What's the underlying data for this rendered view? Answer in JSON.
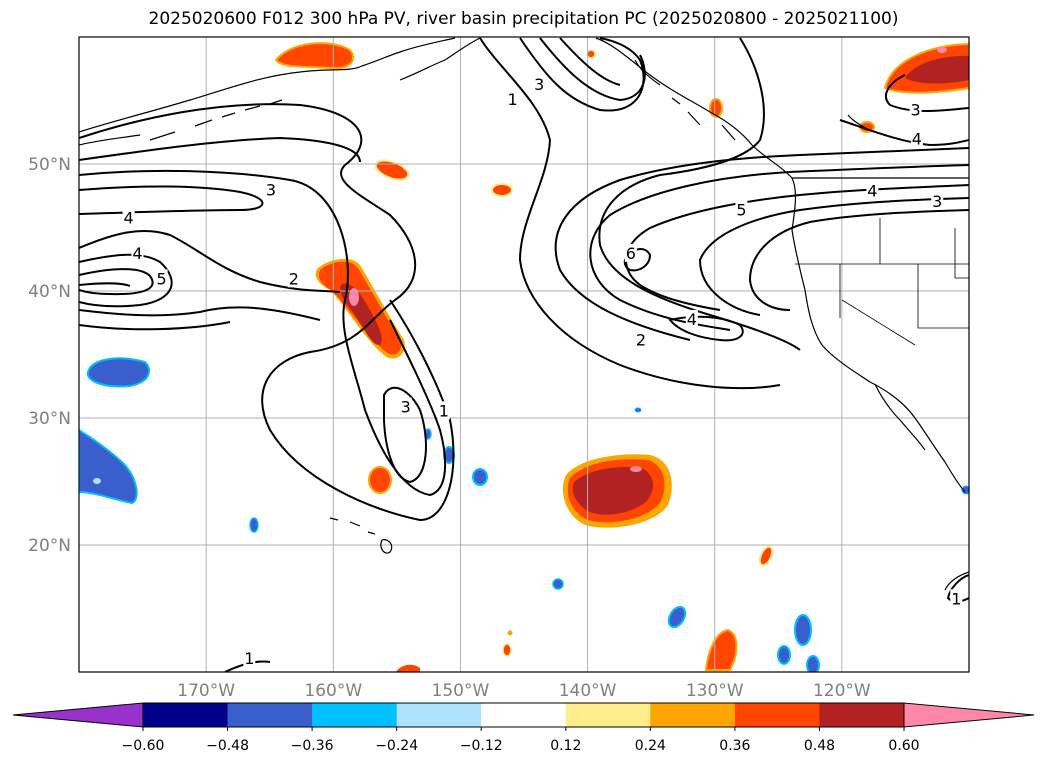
{
  "title": "2025020600 F012 300 hPa PV, river basin precipitation PC (2025020800 - 2025021100)",
  "axes": {
    "lat_labels": [
      {
        "lat": 50,
        "label": "50°N"
      },
      {
        "lat": 40,
        "label": "40°N"
      },
      {
        "lat": 30,
        "label": "30°N"
      },
      {
        "lat": 20,
        "label": "20°N"
      }
    ],
    "lon_labels": [
      {
        "lon": -170,
        "label": "170°W"
      },
      {
        "lon": -160,
        "label": "160°W"
      },
      {
        "lon": -150,
        "label": "150°W"
      },
      {
        "lon": -140,
        "label": "140°W"
      },
      {
        "lon": -130,
        "label": "130°W"
      },
      {
        "lon": -120,
        "label": "120°W"
      }
    ],
    "lon_range": [
      -180,
      -110
    ],
    "lat_range": [
      10,
      60
    ],
    "gridlines": true,
    "tick_color": "#808080"
  },
  "contour_labels": [
    {
      "lon": -176.1,
      "lat": 45.8,
      "text": "4"
    },
    {
      "lon": -175.4,
      "lat": 43.0,
      "text": "4"
    },
    {
      "lon": -173.5,
      "lat": 41.0,
      "text": "5"
    },
    {
      "lon": -164.9,
      "lat": 48.0,
      "text": "3"
    },
    {
      "lon": -163.1,
      "lat": 41.0,
      "text": "2"
    },
    {
      "lon": -154.3,
      "lat": 30.9,
      "text": "3"
    },
    {
      "lon": -151.3,
      "lat": 30.6,
      "text": "1"
    },
    {
      "lon": -145.9,
      "lat": 55.1,
      "text": "1"
    },
    {
      "lon": -143.8,
      "lat": 56.3,
      "text": "3"
    },
    {
      "lon": -136.6,
      "lat": 43.0,
      "text": "6"
    },
    {
      "lon": -135.8,
      "lat": 36.2,
      "text": "2"
    },
    {
      "lon": -131.8,
      "lat": 37.8,
      "text": "4"
    },
    {
      "lon": -127.9,
      "lat": 46.4,
      "text": "5"
    },
    {
      "lon": -114.2,
      "lat": 54.3,
      "text": "3"
    },
    {
      "lon": -114.1,
      "lat": 52.0,
      "text": "4"
    },
    {
      "lon": -117.6,
      "lat": 47.9,
      "text": "4"
    },
    {
      "lon": -112.5,
      "lat": 47.1,
      "text": "3"
    },
    {
      "lon": -111.0,
      "lat": 15.8,
      "text": "1"
    },
    {
      "lon": -166.6,
      "lat": 11.1,
      "text": "1"
    }
  ],
  "colorbar": {
    "levels": [
      -0.6,
      -0.48,
      -0.36,
      -0.24,
      -0.12,
      0.12,
      0.24,
      0.36,
      0.48,
      0.6
    ],
    "tick_labels": [
      "−0.60",
      "−0.48",
      "−0.36",
      "−0.24",
      "−0.12",
      "0.12",
      "0.24",
      "0.36",
      "0.48",
      "0.60"
    ],
    "colors": [
      "#9932cc",
      "#00008b",
      "#3a5fcd",
      "#00bfff",
      "#b0e2ff",
      "#ffffff",
      "#ffec8b",
      "#ffa500",
      "#ff4500",
      "#b22222",
      "#ff88aa"
    ]
  },
  "legend_colors": {
    "contour": "#000000",
    "coast": "#000000",
    "grid": "#b0b0b0"
  }
}
